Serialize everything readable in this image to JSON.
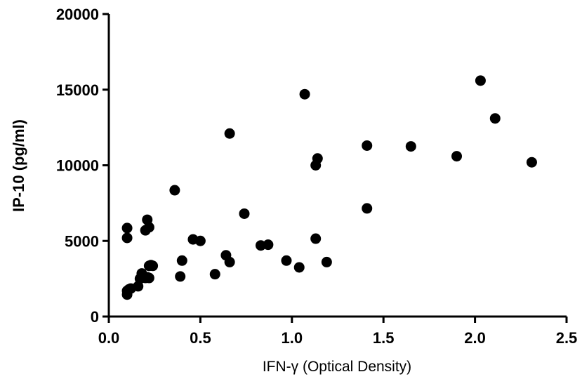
{
  "chart_data": {
    "type": "scatter",
    "title": "",
    "xlabel": "IFN-γ (Optical Density)",
    "ylabel": "IP-10 (pg/ml)",
    "xlim": [
      0.0,
      2.5
    ],
    "ylim": [
      0,
      20000
    ],
    "x_ticks": [
      "0.0",
      "0.5",
      "1.0",
      "1.5",
      "2.0",
      "2.5"
    ],
    "y_ticks": [
      "0",
      "5000",
      "10000",
      "15000",
      "20000"
    ],
    "grid": false,
    "legend": "none",
    "marker_color": "#000000",
    "series": [
      {
        "x": [
          0.1,
          0.1,
          0.11,
          0.12,
          0.16,
          0.17,
          0.18,
          0.2,
          0.21,
          0.22,
          0.22,
          0.23,
          0.24,
          0.2,
          0.21,
          0.22,
          0.1,
          0.1,
          0.36,
          0.39,
          0.4,
          0.46,
          0.5,
          0.58,
          0.64,
          0.66,
          0.66,
          0.74,
          0.83,
          0.87,
          0.97,
          1.04,
          1.07,
          1.13,
          1.13,
          1.14,
          1.19,
          1.41,
          1.41,
          1.65,
          1.9,
          2.03,
          2.11,
          2.31
        ],
        "y": [
          1450,
          1700,
          1800,
          1850,
          2000,
          2500,
          2850,
          2550,
          2600,
          2550,
          3350,
          3400,
          3350,
          5700,
          6400,
          5900,
          5850,
          5200,
          8350,
          2650,
          3700,
          5100,
          5000,
          2800,
          4050,
          3600,
          12100,
          6800,
          4700,
          4750,
          3700,
          3250,
          14700,
          10000,
          5150,
          10450,
          3600,
          11300,
          7150,
          11250,
          10600,
          15600,
          13100,
          10200
        ]
      }
    ]
  }
}
